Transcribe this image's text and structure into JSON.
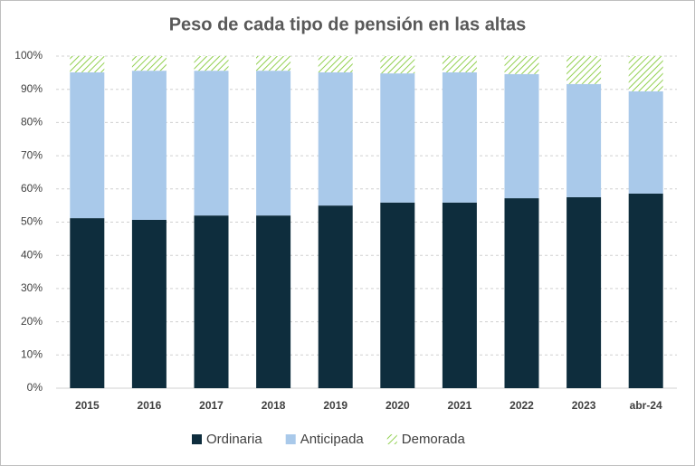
{
  "chart_data": {
    "type": "stacked_bar",
    "title": "Peso de cada tipo de pensión en las altas",
    "categories": [
      "2015",
      "2016",
      "2017",
      "2018",
      "2019",
      "2020",
      "2021",
      "2022",
      "2023",
      "abr-24"
    ],
    "series": [
      {
        "name": "Ordinaria",
        "color": "#0e2d3d",
        "values": [
          51.2,
          50.7,
          52.0,
          52.0,
          55.0,
          55.9,
          55.9,
          57.2,
          57.5,
          58.6
        ]
      },
      {
        "name": "Anticipada",
        "color": "#a9c9ea",
        "values": [
          43.9,
          44.9,
          43.6,
          43.6,
          40.1,
          38.9,
          39.2,
          37.4,
          34.1,
          30.8
        ]
      },
      {
        "name": "Demorada",
        "color": "#92d050",
        "hatched": true,
        "values": [
          4.9,
          4.4,
          4.4,
          4.4,
          4.9,
          5.2,
          4.9,
          5.4,
          8.4,
          10.6
        ]
      }
    ],
    "ylim": [
      0,
      100
    ],
    "yticks": [
      {
        "value": 0,
        "label": "0%"
      },
      {
        "value": 10,
        "label": "10%"
      },
      {
        "value": 20,
        "label": "20%"
      },
      {
        "value": 30,
        "label": "30%"
      },
      {
        "value": 40,
        "label": "40%"
      },
      {
        "value": 50,
        "label": "50%"
      },
      {
        "value": 60,
        "label": "60%"
      },
      {
        "value": 70,
        "label": "70%"
      },
      {
        "value": 80,
        "label": "80%"
      },
      {
        "value": 90,
        "label": "90%"
      },
      {
        "value": 100,
        "label": "100%"
      }
    ],
    "grid": true,
    "legend": "bottom"
  }
}
